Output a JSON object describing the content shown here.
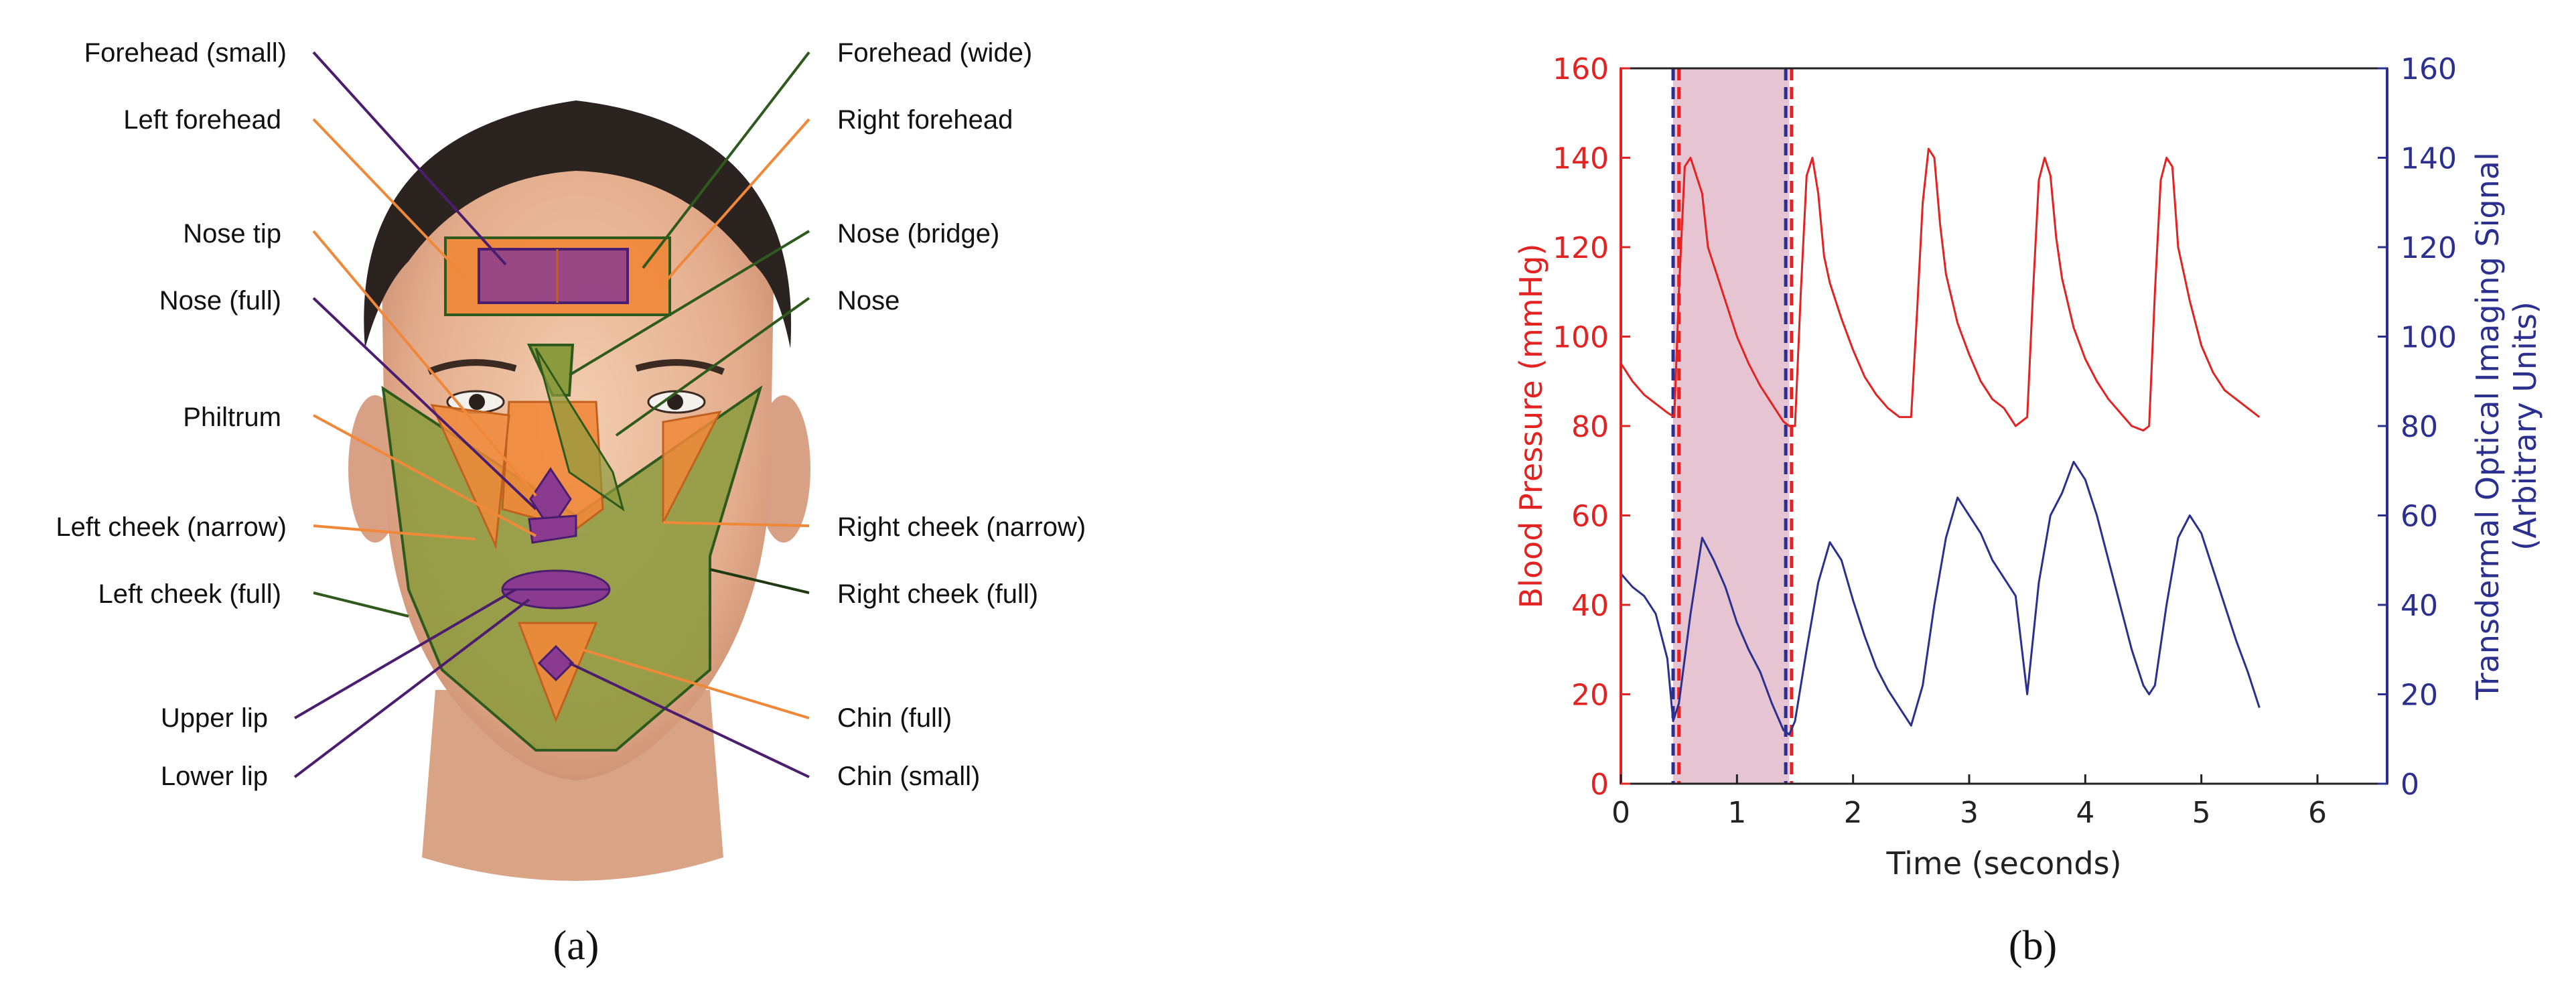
{
  "panel_a": {
    "caption": "(a)",
    "colors": {
      "orange": "#f0883a",
      "green": "#8b9a3c",
      "purple": "#8a3b8f",
      "dark_green": "#2f5a1e",
      "dark_purple": "#4b1d6e"
    },
    "labels_left": [
      "Forehead (small)",
      "Left forehead",
      "Nose tip",
      "Nose (full)",
      "Philtrum",
      "Left cheek (narrow)",
      "Left cheek (full)",
      "Upper lip",
      "Lower lip"
    ],
    "labels_right": [
      "Forehead (wide)",
      "Right forehead",
      "Nose (bridge)",
      "Nose",
      "Right cheek (narrow)",
      "Right cheek (full)",
      "Chin (full)",
      "Chin (small)"
    ]
  },
  "panel_b": {
    "caption": "(b)",
    "colors": {
      "bp": "#e32222",
      "toi": "#2b2f8f",
      "shade": "#e7c4d2"
    },
    "chart_data": {
      "type": "line",
      "xlabel": "Time (seconds)",
      "ylabel_left": "Blood Pressure (mmHg)",
      "ylabel_right": "Transdermal Optical Imaging Signal (Arbitrary Units)",
      "xlim": [
        0,
        6.6
      ],
      "xticks": [
        "0",
        "1",
        "2",
        "3",
        "4",
        "5",
        "6"
      ],
      "ylim": [
        0,
        160
      ],
      "yticks": [
        "0",
        "20",
        "40",
        "60",
        "80",
        "100",
        "120",
        "140",
        "160"
      ],
      "shaded_region": [
        0.45,
        1.45
      ],
      "markers": [
        0.45,
        0.5,
        1.42,
        1.47
      ],
      "series": [
        {
          "name": "Blood Pressure (mmHg)",
          "axis": "left",
          "x": [
            0,
            0.1,
            0.2,
            0.3,
            0.4,
            0.46,
            0.5,
            0.55,
            0.6,
            0.7,
            0.75,
            0.8,
            0.9,
            1.0,
            1.1,
            1.2,
            1.3,
            1.4,
            1.45,
            1.5,
            1.55,
            1.6,
            1.65,
            1.7,
            1.75,
            1.8,
            1.9,
            2.0,
            2.1,
            2.2,
            2.3,
            2.4,
            2.5,
            2.55,
            2.6,
            2.65,
            2.7,
            2.75,
            2.8,
            2.9,
            3.0,
            3.1,
            3.2,
            3.3,
            3.4,
            3.5,
            3.55,
            3.6,
            3.65,
            3.7,
            3.75,
            3.8,
            3.9,
            4.0,
            4.1,
            4.2,
            4.3,
            4.4,
            4.5,
            4.55,
            4.6,
            4.65,
            4.7,
            4.75,
            4.8,
            4.9,
            5.0,
            5.1,
            5.2,
            5.3,
            5.4,
            5.5
          ],
          "values": [
            94,
            90,
            87,
            85,
            83,
            82,
            110,
            138,
            140,
            132,
            120,
            116,
            108,
            100,
            94,
            89,
            85,
            81,
            80,
            80,
            110,
            136,
            140,
            132,
            118,
            112,
            104,
            97,
            91,
            87,
            84,
            82,
            82,
            105,
            130,
            142,
            140,
            125,
            114,
            103,
            96,
            90,
            86,
            84,
            80,
            82,
            110,
            135,
            140,
            136,
            122,
            113,
            102,
            95,
            90,
            86,
            83,
            80,
            79,
            80,
            110,
            135,
            140,
            138,
            120,
            108,
            98,
            92,
            88,
            86,
            84,
            82
          ]
        },
        {
          "name": "Transdermal Optical Imaging Signal (Arbitrary Units)",
          "axis": "right",
          "x": [
            0,
            0.1,
            0.2,
            0.3,
            0.4,
            0.45,
            0.5,
            0.6,
            0.7,
            0.8,
            0.9,
            1.0,
            1.1,
            1.2,
            1.3,
            1.4,
            1.45,
            1.5,
            1.6,
            1.7,
            1.8,
            1.9,
            2.0,
            2.1,
            2.2,
            2.3,
            2.4,
            2.5,
            2.6,
            2.7,
            2.8,
            2.9,
            3.0,
            3.1,
            3.2,
            3.3,
            3.4,
            3.5,
            3.6,
            3.7,
            3.8,
            3.9,
            4.0,
            4.1,
            4.2,
            4.3,
            4.4,
            4.5,
            4.55,
            4.6,
            4.7,
            4.8,
            4.9,
            5.0,
            5.1,
            5.2,
            5.3,
            5.4,
            5.5
          ],
          "values": [
            47,
            44,
            42,
            38,
            28,
            14,
            18,
            38,
            55,
            50,
            44,
            36,
            30,
            25,
            18,
            12,
            11,
            14,
            30,
            45,
            54,
            50,
            41,
            33,
            26,
            21,
            17,
            13,
            22,
            40,
            55,
            64,
            60,
            56,
            50,
            46,
            42,
            20,
            45,
            60,
            65,
            72,
            68,
            60,
            50,
            40,
            30,
            22,
            20,
            22,
            40,
            55,
            60,
            56,
            48,
            40,
            32,
            25,
            17
          ]
        }
      ]
    }
  }
}
